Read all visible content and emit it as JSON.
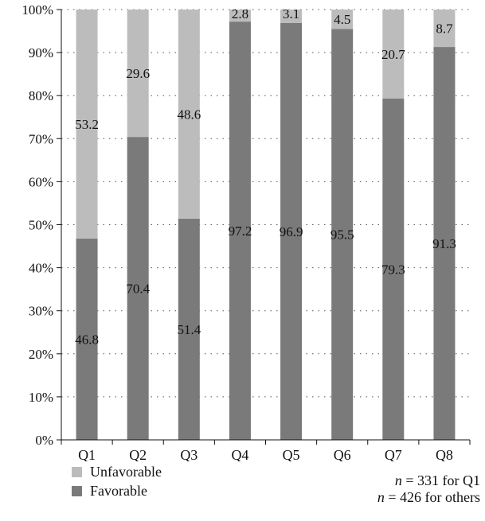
{
  "chart_data": {
    "type": "bar",
    "stacked": true,
    "categories": [
      "Q1",
      "Q2",
      "Q3",
      "Q4",
      "Q5",
      "Q6",
      "Q7",
      "Q8"
    ],
    "series": [
      {
        "name": "Favorable",
        "values": [
          46.8,
          70.4,
          51.4,
          97.2,
          96.9,
          95.5,
          79.3,
          91.3
        ],
        "color": "#7a7a7a"
      },
      {
        "name": "Unfavorable",
        "values": [
          53.2,
          29.6,
          48.6,
          2.8,
          3.1,
          4.5,
          20.7,
          8.7
        ],
        "color": "#bcbcbc"
      }
    ],
    "ylim": [
      0,
      100
    ],
    "yticks": [
      "0%",
      "10%",
      "20%",
      "30%",
      "40%",
      "50%",
      "60%",
      "70%",
      "80%",
      "90%",
      "100%"
    ],
    "grid": "dotted-horizontal",
    "legend": [
      "Unfavorable",
      "Favorable"
    ],
    "legend_position": "bottom-left"
  },
  "note": {
    "line1_var": "n",
    "line1_rest": " = 331 for Q1",
    "line2_var": "n",
    "line2_rest": " = 426 for others"
  }
}
